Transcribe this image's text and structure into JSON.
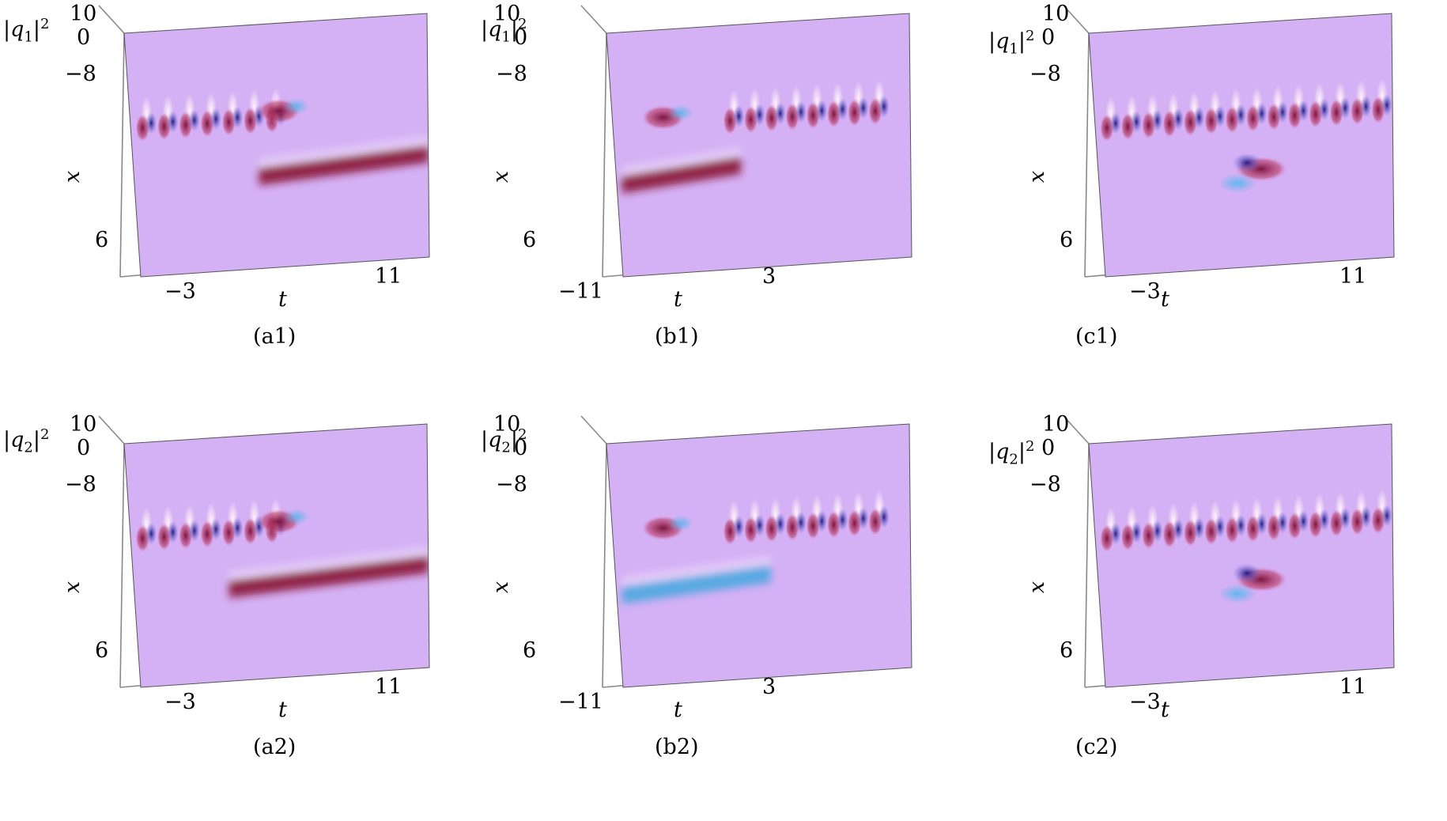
{
  "chart_data": [
    {
      "type": "surface",
      "panel": "(a1)",
      "zlabel_base": "q",
      "zlabel_sub": "1",
      "zlabel_sup": "2",
      "xlabel": "x",
      "tlabel": "t",
      "z_ticks": [
        "10",
        "0"
      ],
      "x_ticks": [
        "−8",
        "6"
      ],
      "t_ticks": [
        "−3",
        "11"
      ],
      "features": {
        "breather_row": {
          "x": 6,
          "t_start": -6,
          "t_end": 4
        },
        "bump": {
          "t": 3.5
        },
        "soliton": {
          "t_start": 2,
          "t_end": 14,
          "color": "#8b1538"
        }
      }
    },
    {
      "type": "surface",
      "panel": "(b1)",
      "zlabel_base": "q",
      "zlabel_sub": "1",
      "zlabel_sup": "2",
      "xlabel": "x",
      "tlabel": "t",
      "z_ticks": [
        "10",
        "0"
      ],
      "x_ticks": [
        "−8",
        "6"
      ],
      "t_ticks": [
        "−11",
        "3"
      ],
      "features": {
        "breather_row": {
          "x": 6,
          "t_start": -7,
          "t_end": 4
        },
        "bump": {
          "t": -11
        },
        "soliton": {
          "t_start": -14,
          "t_end": -6,
          "color": "#8b1538"
        }
      }
    },
    {
      "type": "surface",
      "panel": "(c1)",
      "zlabel_base": "q",
      "zlabel_sub": "1",
      "zlabel_sup": "2",
      "xlabel": "x",
      "tlabel": "t",
      "z_ticks": [
        "10",
        "0"
      ],
      "x_ticks": [
        "−8",
        "6"
      ],
      "t_ticks": [
        "−3",
        "11"
      ],
      "features": {
        "breather_row": {
          "x": 6,
          "t_start": -6,
          "t_end": 14
        },
        "rogue_wave": {
          "t": 4
        }
      }
    },
    {
      "type": "surface",
      "panel": "(a2)",
      "zlabel_base": "q",
      "zlabel_sub": "2",
      "zlabel_sup": "2",
      "xlabel": "x",
      "tlabel": "t",
      "z_ticks": [
        "10",
        "0"
      ],
      "x_ticks": [
        "−8",
        "6"
      ],
      "t_ticks": [
        "−3",
        "11"
      ],
      "features": {
        "breather_row": {
          "x": 6,
          "t_start": -6,
          "t_end": 4
        },
        "bump": {
          "t": 3.5
        },
        "soliton": {
          "t_start": 0,
          "t_end": 14,
          "color": "#8b1538"
        }
      }
    },
    {
      "type": "surface",
      "panel": "(b2)",
      "zlabel_base": "q",
      "zlabel_sub": "2",
      "zlabel_sup": "2",
      "xlabel": "x",
      "tlabel": "t",
      "z_ticks": [
        "10",
        "0"
      ],
      "x_ticks": [
        "−8",
        "6"
      ],
      "t_ticks": [
        "−11",
        "3"
      ],
      "features": {
        "breather_row": {
          "x": 6,
          "t_start": -7,
          "t_end": 4
        },
        "bump": {
          "t": -11
        },
        "soliton": {
          "t_start": -14,
          "t_end": -4,
          "color": "#4aa8e0"
        }
      }
    },
    {
      "type": "surface",
      "panel": "(c2)",
      "zlabel_base": "q",
      "zlabel_sub": "2",
      "zlabel_sup": "2",
      "xlabel": "x",
      "tlabel": "t",
      "z_ticks": [
        "10",
        "0"
      ],
      "x_ticks": [
        "−8",
        "6"
      ],
      "t_ticks": [
        "−3",
        "11"
      ],
      "features": {
        "breather_row": {
          "x": 6,
          "t_start": -6,
          "t_end": 14
        },
        "rogue_wave": {
          "t": 4
        }
      }
    }
  ],
  "colors": {
    "background": "#d4b0f4",
    "crest": "#7a1640",
    "trough": "#2a1a80",
    "highlight": "#ffffff",
    "blue_band": "#56b8ee",
    "axis": "#888888"
  }
}
